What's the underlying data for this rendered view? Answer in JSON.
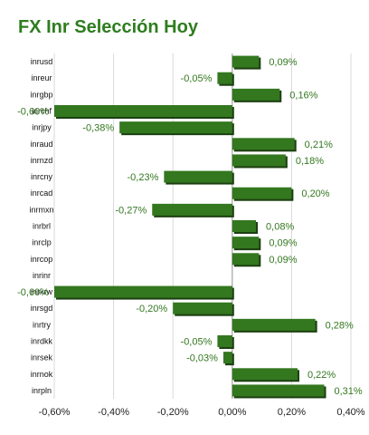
{
  "chart_data": {
    "type": "bar",
    "orientation": "horizontal",
    "title": "FX Inr Selección Hoy",
    "xlabel": "",
    "ylabel": "",
    "xlim": [
      -0.6,
      0.4
    ],
    "xticks": [
      -0.6,
      -0.4,
      -0.2,
      0.0,
      0.2,
      0.4
    ],
    "xtick_labels": [
      "-0,60%",
      "-0,40%",
      "-0,20%",
      "0,00%",
      "0,20%",
      "0,40%"
    ],
    "grid": true,
    "legend": "none",
    "bar_color": "#33771f",
    "label_color": "#33771f",
    "categories": [
      "inrusd",
      "inreur",
      "inrgbp",
      "inrchf",
      "inrjpy",
      "inraud",
      "inrnzd",
      "inrcny",
      "inrcad",
      "inrmxn",
      "inrbrl",
      "inrclp",
      "inrcop",
      "inrinr",
      "inrkrw",
      "inrsgd",
      "inrtry",
      "inrdkk",
      "inrsek",
      "inrnok",
      "inrpln"
    ],
    "values": [
      0.09,
      -0.05,
      0.16,
      -0.6,
      -0.38,
      0.21,
      0.18,
      -0.23,
      0.2,
      -0.27,
      0.08,
      0.09,
      0.09,
      0.0,
      -0.6,
      -0.2,
      0.28,
      -0.05,
      -0.03,
      0.22,
      0.31
    ],
    "data_labels": [
      "0,09%",
      "-0,05%",
      "0,16%",
      "-0,60%",
      "-0,38%",
      "0,21%",
      "0,18%",
      "-0,23%",
      "0,20%",
      "-0,27%",
      "0,08%",
      "0,09%",
      "0,09%",
      "",
      "-0,60%",
      "-0,20%",
      "0,28%",
      "-0,05%",
      "-0,03%",
      "0,22%",
      "0,31%"
    ]
  }
}
